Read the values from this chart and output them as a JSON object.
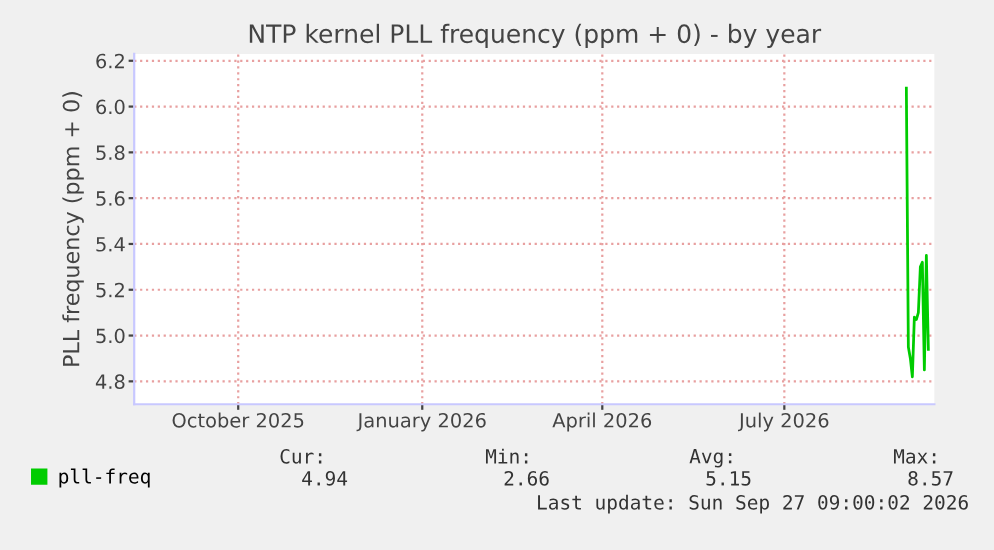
{
  "chart_data": {
    "type": "line",
    "title": "NTP kernel PLL frequency (ppm + 0) - by year",
    "ylabel": "PLL frequency (ppm + 0)",
    "x": [
      "2026-09-15",
      "2026-09-16",
      "2026-09-17",
      "2026-09-18",
      "2026-09-19",
      "2026-09-20",
      "2026-09-21",
      "2026-09-22",
      "2026-09-23",
      "2026-09-24",
      "2026-09-25",
      "2026-09-26"
    ],
    "series": [
      {
        "name": "pll-freq",
        "color": "#00cc00",
        "values": [
          6.08,
          4.95,
          4.9,
          4.82,
          5.08,
          5.07,
          5.1,
          5.3,
          5.32,
          4.85,
          5.35,
          4.94
        ]
      }
    ],
    "xlim": [
      "2025-08-25",
      "2026-09-29"
    ],
    "xticks": [
      {
        "value": "2025-10-16",
        "label": "October 2025"
      },
      {
        "value": "2026-01-16",
        "label": "January 2026"
      },
      {
        "value": "2026-04-16",
        "label": "April 2026"
      },
      {
        "value": "2026-07-16",
        "label": "July 2026"
      }
    ],
    "ylim": [
      4.7,
      6.23
    ],
    "yticks": [
      {
        "value": 4.8,
        "label": "4.8"
      },
      {
        "value": 5.0,
        "label": "5.0"
      },
      {
        "value": 5.2,
        "label": "5.2"
      },
      {
        "value": 5.4,
        "label": "5.4"
      },
      {
        "value": 5.6,
        "label": "5.6"
      },
      {
        "value": 5.8,
        "label": "5.8"
      },
      {
        "value": 6.0,
        "label": "6.0"
      },
      {
        "value": 6.2,
        "label": "6.2"
      }
    ],
    "grid": true,
    "legend": "bottom",
    "marker": "none",
    "line_style": "solid",
    "annotations": [
      "Cur:",
      "Min:",
      "Avg:",
      "Max:",
      "4.94",
      "2.66",
      "5.15",
      "8.57",
      "Last update: Sun Sep 27 09:00:02 2026"
    ]
  }
}
